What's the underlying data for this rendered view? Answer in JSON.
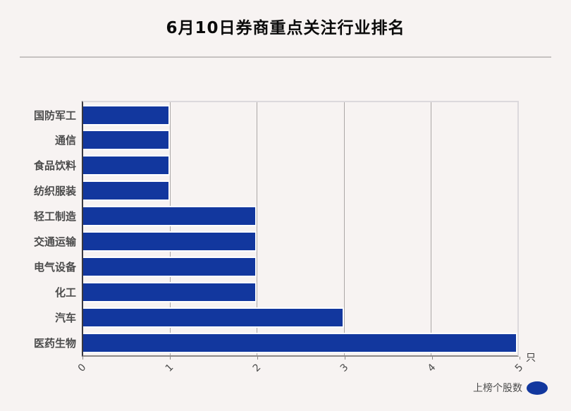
{
  "title": "6月10日券商重点关注行业排名",
  "unit_label": "只",
  "legend": {
    "label": "上榜个股数"
  },
  "colors": {
    "bar": "#12379e",
    "background": "#f7f3f2",
    "grid": "#aba7a6",
    "label": "#4c4c4c"
  },
  "chart_data": {
    "type": "bar",
    "orientation": "horizontal",
    "title": "6月10日券商重点关注行业排名",
    "categories": [
      "国防军工",
      "通信",
      "食品饮料",
      "纺织服装",
      "轻工制造",
      "交通运输",
      "电气设备",
      "化工",
      "汽车",
      "医药生物"
    ],
    "values": [
      1,
      1,
      1,
      1,
      2,
      2,
      2,
      2,
      3,
      5
    ],
    "series": [
      {
        "name": "上榜个股数",
        "values": [
          1,
          1,
          1,
          1,
          2,
          2,
          2,
          2,
          3,
          5
        ]
      }
    ],
    "xlabel": "只",
    "ylabel": "",
    "xlim": [
      0,
      5
    ],
    "xticks": [
      0,
      1,
      2,
      3,
      4,
      5
    ],
    "xtick_rotation": 45,
    "grid": true,
    "legend_position": "bottom-right"
  }
}
